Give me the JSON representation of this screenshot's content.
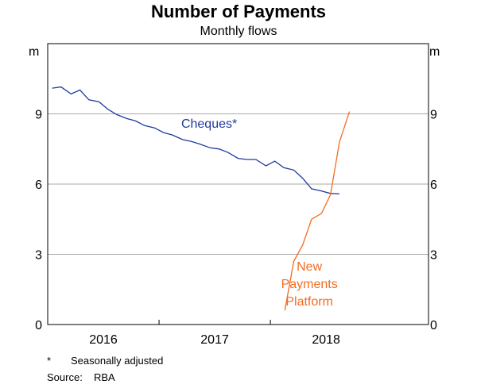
{
  "title": "Number of Payments",
  "subtitle": "Monthly flows",
  "unit_left": "m",
  "unit_right": "m",
  "footnote": {
    "marker": "*",
    "text": "Seasonally adjusted"
  },
  "source": {
    "label": "Source:",
    "text": "RBA"
  },
  "colors": {
    "cheques": "#1f3a9c",
    "npp": "#f26c21",
    "grid": "#aaaaaa",
    "axis": "#000000"
  },
  "chart_data": {
    "type": "line",
    "ylim": [
      0,
      12
    ],
    "yticks": [
      0,
      3,
      6,
      9
    ],
    "xlim": [
      2015.5,
      2018.92
    ],
    "xticks": [
      {
        "label": "2016",
        "center": 2016.0
      },
      {
        "label": "2017",
        "center": 2017.0
      },
      {
        "label": "2018",
        "center": 2018.0
      }
    ],
    "year_boundaries": [
      2016.5,
      2017.5
    ],
    "grid": true,
    "series": [
      {
        "name": "Cheques*",
        "color": "#1f3a9c",
        "label_pos": {
          "x": 2016.95,
          "y": 8.4
        },
        "points": [
          [
            2015.54,
            10.1
          ],
          [
            2015.62,
            10.15
          ],
          [
            2015.71,
            9.85
          ],
          [
            2015.79,
            10.02
          ],
          [
            2015.87,
            9.6
          ],
          [
            2015.96,
            9.52
          ],
          [
            2016.04,
            9.2
          ],
          [
            2016.12,
            8.97
          ],
          [
            2016.21,
            8.8
          ],
          [
            2016.29,
            8.7
          ],
          [
            2016.37,
            8.5
          ],
          [
            2016.46,
            8.4
          ],
          [
            2016.54,
            8.2
          ],
          [
            2016.62,
            8.1
          ],
          [
            2016.71,
            7.9
          ],
          [
            2016.79,
            7.82
          ],
          [
            2016.87,
            7.7
          ],
          [
            2016.96,
            7.55
          ],
          [
            2017.04,
            7.5
          ],
          [
            2017.12,
            7.35
          ],
          [
            2017.21,
            7.1
          ],
          [
            2017.29,
            7.05
          ],
          [
            2017.37,
            7.05
          ],
          [
            2017.46,
            6.78
          ],
          [
            2017.54,
            6.98
          ],
          [
            2017.62,
            6.7
          ],
          [
            2017.71,
            6.6
          ],
          [
            2017.79,
            6.25
          ],
          [
            2017.87,
            5.8
          ],
          [
            2017.96,
            5.7
          ],
          [
            2018.04,
            5.6
          ],
          [
            2018.12,
            5.58
          ]
        ]
      },
      {
        "name": "New Payments Platform",
        "label_lines": [
          "New",
          "Payments",
          "Platform"
        ],
        "color": "#f26c21",
        "label_pos": {
          "x": 2017.85,
          "y": 2.3
        },
        "points": [
          [
            2017.63,
            0.6
          ],
          [
            2017.71,
            2.7
          ],
          [
            2017.79,
            3.4
          ],
          [
            2017.87,
            4.5
          ],
          [
            2017.96,
            4.75
          ],
          [
            2018.04,
            5.55
          ],
          [
            2018.12,
            7.8
          ],
          [
            2018.21,
            9.1
          ]
        ]
      }
    ]
  }
}
